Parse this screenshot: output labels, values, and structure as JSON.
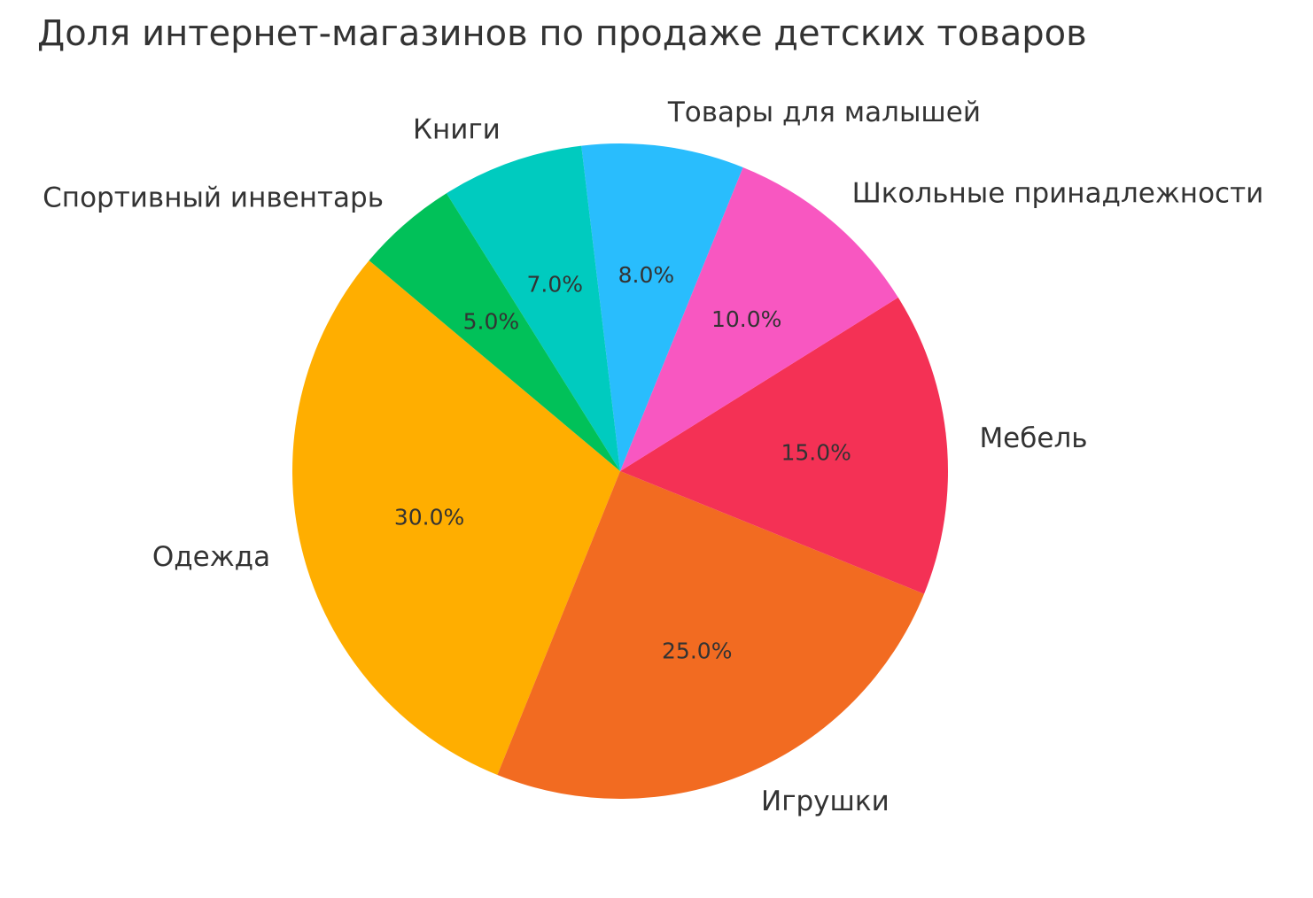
{
  "chart_data": {
    "type": "pie",
    "title": "Доля интернет-магазинов по продаже детских товаров",
    "categories": [
      "Одежда",
      "Игрушки",
      "Мебель",
      "Школьные принадлежности",
      "Товары для малышей",
      "Книги",
      "Спортивный инвентарь"
    ],
    "values": [
      30,
      25,
      15,
      10,
      8,
      7,
      5
    ],
    "value_labels": [
      "30.0%",
      "25.0%",
      "15.0%",
      "10.0%",
      "8.0%",
      "7.0%",
      "5.0%"
    ],
    "colors": [
      "#ffae00",
      "#f26b21",
      "#f43155",
      "#f857c1",
      "#29bdfd",
      "#00cbbf",
      "#01c159"
    ]
  }
}
